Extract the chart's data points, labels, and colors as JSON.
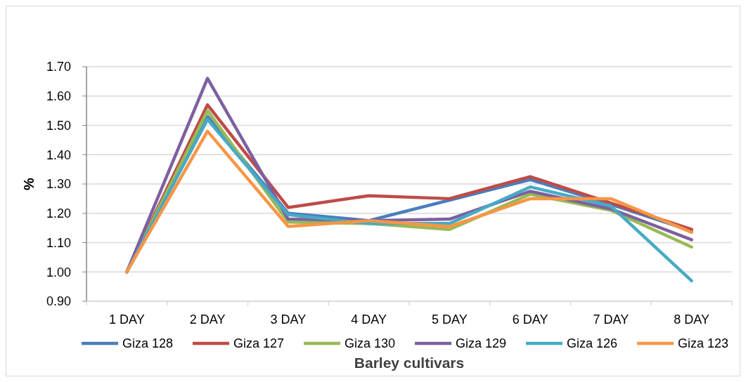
{
  "chart_data": {
    "type": "line",
    "xlabel": "Barley cultivars",
    "ylabel": "%",
    "categories": [
      "1 DAY",
      "2 DAY",
      "3 DAY",
      "4 DAY",
      "5 DAY",
      "6 DAY",
      "7 DAY",
      "8 DAY"
    ],
    "series": [
      {
        "name": "Giza 128",
        "color": "#4a7ebb",
        "values": [
          1.0,
          1.53,
          1.2,
          1.175,
          1.245,
          1.315,
          1.23,
          1.14
        ]
      },
      {
        "name": "Giza 127",
        "color": "#be4b48",
        "values": [
          1.0,
          1.57,
          1.22,
          1.26,
          1.25,
          1.325,
          1.235,
          1.145
        ]
      },
      {
        "name": "Giza 130",
        "color": "#98b954",
        "values": [
          1.0,
          1.55,
          1.17,
          1.165,
          1.145,
          1.265,
          1.21,
          1.085
        ]
      },
      {
        "name": "Giza 129",
        "color": "#7d60a0",
        "values": [
          1.0,
          1.66,
          1.18,
          1.175,
          1.18,
          1.275,
          1.215,
          1.11
        ]
      },
      {
        "name": "Giza 126",
        "color": "#46aac5",
        "values": [
          1.0,
          1.52,
          1.195,
          1.165,
          1.165,
          1.29,
          1.225,
          0.97
        ]
      },
      {
        "name": "Giza 123",
        "color": "#f79646",
        "values": [
          1.0,
          1.48,
          1.155,
          1.175,
          1.155,
          1.25,
          1.25,
          1.135
        ]
      }
    ],
    "ylim": [
      0.9,
      1.7
    ],
    "yticks": [
      {
        "value": 0.9,
        "label": "0.90"
      },
      {
        "value": 1.0,
        "label": "1.00"
      },
      {
        "value": 1.1,
        "label": "1.10"
      },
      {
        "value": 1.2,
        "label": "1.20"
      },
      {
        "value": 1.3,
        "label": "1.30"
      },
      {
        "value": 1.4,
        "label": "1.40"
      },
      {
        "value": 1.5,
        "label": "1.50"
      },
      {
        "value": 1.6,
        "label": "1.60"
      },
      {
        "value": 1.7,
        "label": "1.70"
      }
    ],
    "grid": "y",
    "legend": "bottom",
    "marker": "none",
    "line_style": "solid"
  }
}
